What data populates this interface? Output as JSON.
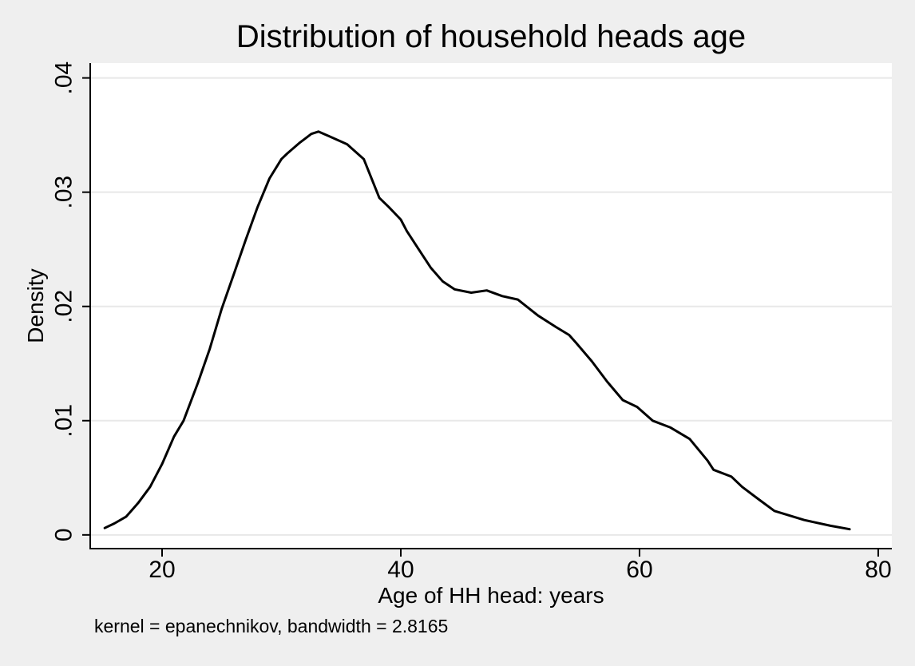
{
  "colors": {
    "background": "#efefef",
    "plot_background": "#ffffff",
    "grid": "#e8e8e8",
    "axis": "#000000",
    "curve": "#000000",
    "text": "#000000"
  },
  "chart_data": {
    "type": "line",
    "title": "Distribution of household heads age",
    "xlabel": "Age of HH head: years",
    "ylabel": "Density",
    "note": "kernel = epanechnikov, bandwidth = 2.8165",
    "kernel": "epanechnikov",
    "bandwidth": 2.8165,
    "grid": "horizontal",
    "legend": "none",
    "x_ticks": [
      20,
      40,
      60,
      80
    ],
    "x_tick_labels": [
      "20",
      "40",
      "60",
      "80"
    ],
    "y_ticks": [
      0,
      0.01,
      0.02,
      0.03,
      0.04
    ],
    "y_tick_labels": [
      "0",
      ".01",
      ".02",
      ".03",
      ".04"
    ],
    "xlim": [
      13.98,
      81.14
    ],
    "ylim": [
      -0.0012,
      0.0413
    ],
    "peak": {
      "x": 33,
      "y": 0.0353
    },
    "points": [
      [
        15.2,
        0.0006
      ],
      [
        16,
        0.001
      ],
      [
        17,
        0.0016
      ],
      [
        18,
        0.0028
      ],
      [
        19,
        0.0042
      ],
      [
        20,
        0.0062
      ],
      [
        21,
        0.0086
      ],
      [
        21.8,
        0.01
      ],
      [
        23,
        0.0133
      ],
      [
        24,
        0.0163
      ],
      [
        25,
        0.0198
      ],
      [
        26,
        0.0228
      ],
      [
        27,
        0.0258
      ],
      [
        28,
        0.0287
      ],
      [
        29,
        0.0312
      ],
      [
        30,
        0.0329
      ],
      [
        30.5,
        0.0334
      ],
      [
        31.5,
        0.0343
      ],
      [
        32.5,
        0.0351
      ],
      [
        33.1,
        0.0353
      ],
      [
        34,
        0.0349
      ],
      [
        35.5,
        0.0342
      ],
      [
        36.9,
        0.0329
      ],
      [
        38.2,
        0.0295
      ],
      [
        39,
        0.0287
      ],
      [
        40,
        0.0276
      ],
      [
        40.5,
        0.0266
      ],
      [
        41.5,
        0.025
      ],
      [
        42.5,
        0.0234
      ],
      [
        43.5,
        0.0222
      ],
      [
        44.5,
        0.0215
      ],
      [
        45.9,
        0.0212
      ],
      [
        47.2,
        0.0214
      ],
      [
        48.5,
        0.0209
      ],
      [
        49.8,
        0.0206
      ],
      [
        51.5,
        0.0192
      ],
      [
        53,
        0.0182
      ],
      [
        54.1,
        0.0175
      ],
      [
        54.7,
        0.0168
      ],
      [
        56,
        0.0152
      ],
      [
        57.3,
        0.0134
      ],
      [
        58.6,
        0.0118
      ],
      [
        59.8,
        0.0112
      ],
      [
        61.1,
        0.01
      ],
      [
        62.6,
        0.0094
      ],
      [
        64.2,
        0.0084
      ],
      [
        65.7,
        0.0065
      ],
      [
        66.2,
        0.0057
      ],
      [
        67.7,
        0.0051
      ],
      [
        68.6,
        0.0042
      ],
      [
        70,
        0.0031
      ],
      [
        71.3,
        0.0021
      ],
      [
        73.8,
        0.0013
      ],
      [
        76,
        0.0008
      ],
      [
        77.6,
        0.0005
      ]
    ]
  }
}
